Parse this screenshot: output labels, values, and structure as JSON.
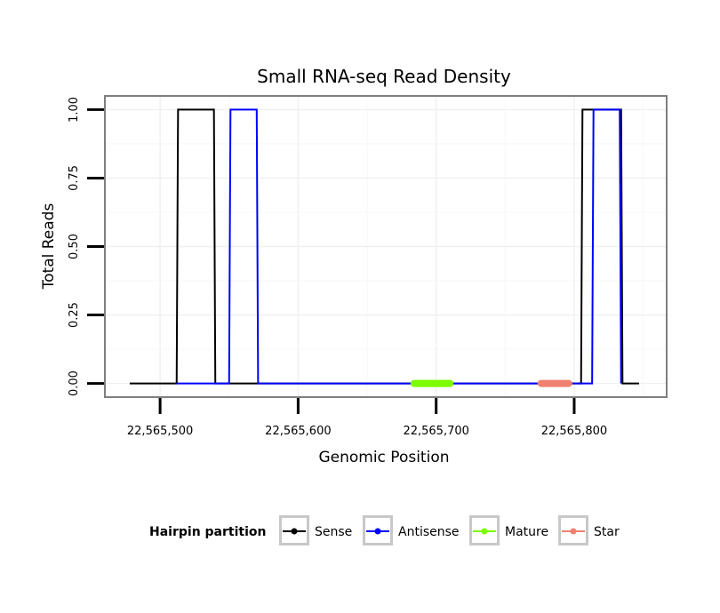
{
  "chart_data": {
    "type": "line",
    "title": "Small RNA-seq Read Density",
    "xlabel": "Genomic Position",
    "ylabel": "Total Reads",
    "xlim": [
      22565460,
      22565867
    ],
    "ylim": [
      -0.05,
      1.05
    ],
    "x_ticks": [
      22565500,
      22565600,
      22565700,
      22565800
    ],
    "x_tick_labels": [
      "22,565,500",
      "22,565,600",
      "22,565,700",
      "22,565,800"
    ],
    "y_ticks": [
      0,
      0.25,
      0.5,
      0.75,
      1
    ],
    "y_tick_labels": [
      "0.00",
      "0.25",
      "0.50",
      "0.75",
      "1.00"
    ],
    "grid": true,
    "legend_position": "bottom",
    "legend_title": "Hairpin partition",
    "series": [
      {
        "name": "Sense",
        "color": "#000000",
        "points": [
          [
            22565478,
            0
          ],
          [
            22565512,
            0
          ],
          [
            22565513,
            1
          ],
          [
            22565539,
            1
          ],
          [
            22565540,
            0
          ],
          [
            22565805,
            0
          ],
          [
            22565806,
            1
          ],
          [
            22565834,
            1
          ],
          [
            22565835,
            0
          ],
          [
            22565847,
            0
          ]
        ]
      },
      {
        "name": "Antisense",
        "color": "#0000ff",
        "points": [
          [
            22565512,
            0
          ],
          [
            22565550,
            0
          ],
          [
            22565551,
            1
          ],
          [
            22565570,
            1
          ],
          [
            22565571,
            0
          ],
          [
            22565813,
            0
          ],
          [
            22565814,
            1
          ],
          [
            22565833,
            1
          ],
          [
            22565834,
            0
          ]
        ]
      },
      {
        "name": "Mature",
        "color": "#7cfc00",
        "points": [
          [
            22565684,
            0
          ],
          [
            22565710,
            0
          ]
        ]
      },
      {
        "name": "Star",
        "color": "#f08070",
        "points": [
          [
            22565776,
            0
          ],
          [
            22565796,
            0
          ]
        ]
      }
    ]
  }
}
